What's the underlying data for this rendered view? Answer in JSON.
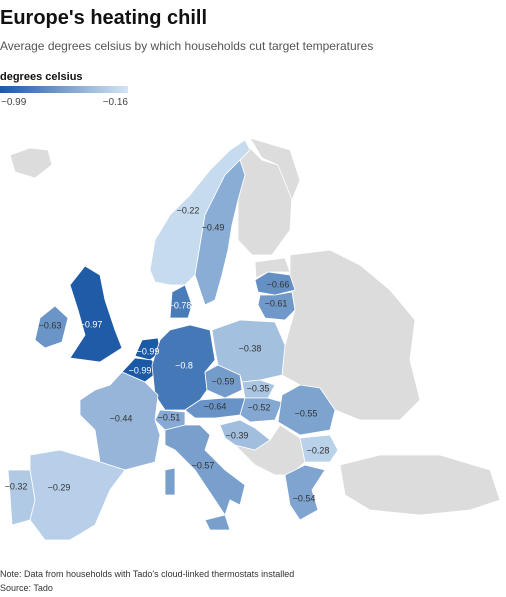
{
  "header": {
    "title": "Europe's heating chill",
    "subtitle": "Average degrees celsius by which households cut target temperatures"
  },
  "legend": {
    "title": "degrees celsius",
    "min": {
      "value": -0.99,
      "label": "−0.99"
    },
    "max": {
      "value": -0.16,
      "label": "−0.16"
    },
    "colors": [
      "#1b58a5",
      "#d4e5f4"
    ]
  },
  "map": {
    "regions": [
      {
        "value": -0.22,
        "label": "−0.22"
      },
      {
        "value": -0.49,
        "label": "−0.49"
      },
      {
        "value": -0.66,
        "label": "−0.66"
      },
      {
        "value": -0.61,
        "label": "−0.61"
      },
      {
        "value": -0.78,
        "label": "−0.78"
      },
      {
        "value": -0.63,
        "label": "−0.63"
      },
      {
        "value": -0.97,
        "label": "−0.97"
      },
      {
        "value": -0.99,
        "label": "−0.99"
      },
      {
        "value": -0.99,
        "label": "−0.99"
      },
      {
        "value": -0.8,
        "label": "−0.8"
      },
      {
        "value": -0.38,
        "label": "−0.38"
      },
      {
        "value": -0.59,
        "label": "−0.59"
      },
      {
        "value": -0.35,
        "label": "−0.35"
      },
      {
        "value": -0.64,
        "label": "−0.64"
      },
      {
        "value": -0.52,
        "label": "−0.52"
      },
      {
        "value": -0.55,
        "label": "−0.55"
      },
      {
        "value": -0.51,
        "label": "−0.51"
      },
      {
        "value": -0.44,
        "label": "−0.44"
      },
      {
        "value": -0.39,
        "label": "−0.39"
      },
      {
        "value": -0.28,
        "label": "−0.28"
      },
      {
        "value": -0.57,
        "label": "−0.57"
      },
      {
        "value": -0.54,
        "label": "−0.54"
      },
      {
        "value": -0.29,
        "label": "−0.29"
      },
      {
        "value": -0.32,
        "label": "−0.32"
      }
    ]
  },
  "footer": {
    "note": "Note: Data from households with Tado's cloud-linked thermostats installed",
    "source": "Source: Tado"
  }
}
